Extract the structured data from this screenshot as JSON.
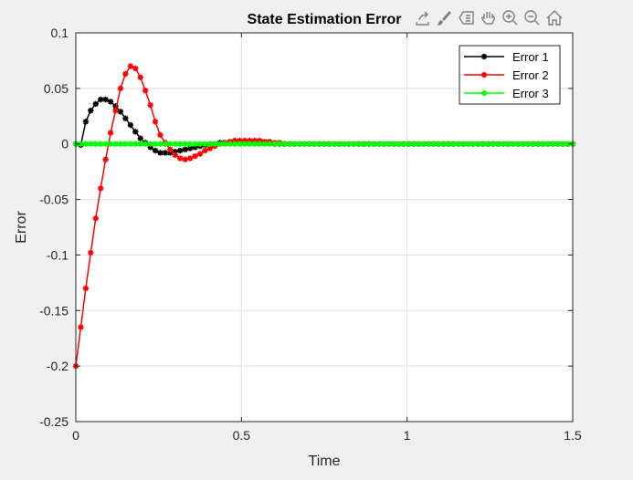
{
  "toolbar": {
    "icons": [
      "export-icon",
      "brush-icon",
      "datatip-icon",
      "pan-icon",
      "zoom-in-icon",
      "zoom-out-icon",
      "home-icon"
    ]
  },
  "chart_data": {
    "type": "line",
    "title": "State Estimation Error",
    "xlabel": "Time",
    "ylabel": "Error",
    "xlim": [
      0,
      1.5
    ],
    "ylim": [
      -0.25,
      0.1
    ],
    "xticks": [
      0,
      0.5,
      1,
      1.5
    ],
    "xtick_labels": [
      "0",
      "0.5",
      "1",
      "1.5"
    ],
    "yticks": [
      0.1,
      0.05,
      0,
      -0.05,
      -0.1,
      -0.15,
      -0.2,
      -0.25
    ],
    "ytick_labels": [
      "0.1",
      "0.05",
      "0",
      "-0.05",
      "-0.1",
      "-0.15",
      "-0.2",
      "-0.25"
    ],
    "grid": true,
    "legend_position": "top-right",
    "marker": "asterisk",
    "x": [
      0,
      0.015,
      0.03,
      0.045,
      0.06,
      0.075,
      0.09,
      0.105,
      0.12,
      0.135,
      0.15,
      0.165,
      0.18,
      0.195,
      0.21,
      0.225,
      0.24,
      0.255,
      0.27,
      0.285,
      0.3,
      0.315,
      0.33,
      0.345,
      0.36,
      0.375,
      0.39,
      0.405,
      0.42,
      0.435,
      0.45,
      0.465,
      0.48,
      0.495,
      0.51,
      0.525,
      0.54,
      0.555,
      0.57,
      0.585,
      0.6,
      0.615,
      0.63,
      0.645,
      0.66,
      0.675,
      0.69,
      0.705,
      0.72,
      0.735,
      0.75,
      0.765,
      0.78,
      0.795,
      0.81,
      0.825,
      0.84,
      0.855,
      0.87,
      0.885,
      0.9,
      0.915,
      0.93,
      0.945,
      0.96,
      0.975,
      0.99,
      1.005,
      1.02,
      1.035,
      1.05,
      1.065,
      1.08,
      1.095,
      1.11,
      1.125,
      1.14,
      1.155,
      1.17,
      1.185,
      1.2,
      1.215,
      1.23,
      1.245,
      1.26,
      1.275,
      1.29,
      1.305,
      1.32,
      1.335,
      1.35,
      1.365,
      1.38,
      1.395,
      1.41,
      1.425,
      1.44,
      1.455,
      1.47,
      1.485,
      1.5
    ],
    "series": [
      {
        "name": "Error 1",
        "color": "#000000",
        "values": [
          0,
          -0.001,
          0.02,
          0.03,
          0.036,
          0.04,
          0.04,
          0.038,
          0.034,
          0.029,
          0.023,
          0.017,
          0.011,
          0.005,
          0.001,
          -0.003,
          -0.006,
          -0.008,
          -0.008,
          -0.008,
          -0.007,
          -0.006,
          -0.005,
          -0.004,
          -0.003,
          -0.002,
          -0.001,
          0,
          0,
          0.001,
          0.001,
          0.001,
          0.001,
          0.001,
          0.001,
          0.001,
          0.001,
          0.001,
          0.001,
          0.001,
          0,
          0,
          0,
          0,
          0,
          0,
          0,
          0,
          0,
          0,
          0,
          0,
          0,
          0,
          0,
          0,
          0,
          0,
          0,
          0,
          0,
          0,
          0,
          0,
          0,
          0,
          0,
          0,
          0,
          0,
          0,
          0,
          0,
          0,
          0,
          0,
          0,
          0,
          0,
          0,
          0,
          0,
          0,
          0,
          0,
          0,
          0,
          0,
          0,
          0,
          0,
          0,
          0,
          0,
          0,
          0,
          0,
          0,
          0,
          0,
          0
        ]
      },
      {
        "name": "Error 2",
        "color": "#ff0000",
        "values": [
          -0.2,
          -0.165,
          -0.13,
          -0.098,
          -0.067,
          -0.04,
          -0.014,
          0.01,
          0.03,
          0.05,
          0.063,
          0.07,
          0.068,
          0.06,
          0.048,
          0.035,
          0.02,
          0.008,
          0.001,
          -0.005,
          -0.01,
          -0.013,
          -0.014,
          -0.013,
          -0.011,
          -0.009,
          -0.006,
          -0.004,
          -0.002,
          0,
          0.001,
          0.002,
          0.003,
          0.003,
          0.003,
          0.003,
          0.003,
          0.003,
          0.002,
          0.002,
          0.001,
          0.001,
          0,
          0,
          0,
          0,
          0,
          0,
          0,
          0,
          0,
          0,
          0,
          0,
          0,
          0,
          0,
          0,
          0,
          0,
          0,
          0,
          0,
          0,
          0,
          0,
          0,
          0,
          0,
          0,
          0,
          0,
          0,
          0,
          0,
          0,
          0,
          0,
          0,
          0,
          0,
          0,
          0,
          0,
          0,
          0,
          0,
          0,
          0,
          0,
          0,
          0,
          0,
          0,
          0,
          0,
          0,
          0,
          0,
          0,
          0
        ]
      },
      {
        "name": "Error 3",
        "color": "#00ff00",
        "values": [
          0,
          0,
          0,
          0,
          0,
          0,
          0,
          0,
          0,
          0,
          0,
          0,
          0,
          0,
          0,
          0,
          0,
          0,
          0,
          0,
          0,
          0,
          0,
          0,
          0,
          0,
          0,
          0,
          0,
          0,
          0,
          0,
          0,
          0,
          0,
          0,
          0,
          0,
          0,
          0,
          0,
          0,
          0,
          0,
          0,
          0,
          0,
          0,
          0,
          0,
          0,
          0,
          0,
          0,
          0,
          0,
          0,
          0,
          0,
          0,
          0,
          0,
          0,
          0,
          0,
          0,
          0,
          0,
          0,
          0,
          0,
          0,
          0,
          0,
          0,
          0,
          0,
          0,
          0,
          0,
          0,
          0,
          0,
          0,
          0,
          0,
          0,
          0,
          0,
          0,
          0,
          0,
          0,
          0,
          0,
          0,
          0,
          0,
          0,
          0,
          0
        ]
      }
    ]
  }
}
